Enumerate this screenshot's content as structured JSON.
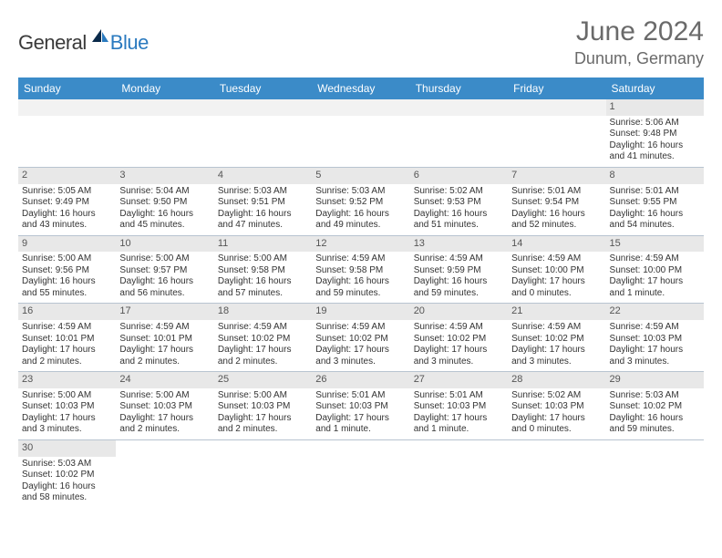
{
  "logo": {
    "text1": "General",
    "text2": "Blue"
  },
  "title": "June 2024",
  "location": "Dunum, Germany",
  "colors": {
    "header_bg": "#3b8bc8",
    "header_text": "#ffffff",
    "daynum_bg": "#e8e8e8",
    "border": "#b8c4d0",
    "title_color": "#6a6a6a"
  },
  "weekdays": [
    "Sunday",
    "Monday",
    "Tuesday",
    "Wednesday",
    "Thursday",
    "Friday",
    "Saturday"
  ],
  "weeks": [
    [
      null,
      null,
      null,
      null,
      null,
      null,
      {
        "n": "1",
        "sr": "Sunrise: 5:06 AM",
        "ss": "Sunset: 9:48 PM",
        "dl1": "Daylight: 16 hours",
        "dl2": "and 41 minutes."
      }
    ],
    [
      {
        "n": "2",
        "sr": "Sunrise: 5:05 AM",
        "ss": "Sunset: 9:49 PM",
        "dl1": "Daylight: 16 hours",
        "dl2": "and 43 minutes."
      },
      {
        "n": "3",
        "sr": "Sunrise: 5:04 AM",
        "ss": "Sunset: 9:50 PM",
        "dl1": "Daylight: 16 hours",
        "dl2": "and 45 minutes."
      },
      {
        "n": "4",
        "sr": "Sunrise: 5:03 AM",
        "ss": "Sunset: 9:51 PM",
        "dl1": "Daylight: 16 hours",
        "dl2": "and 47 minutes."
      },
      {
        "n": "5",
        "sr": "Sunrise: 5:03 AM",
        "ss": "Sunset: 9:52 PM",
        "dl1": "Daylight: 16 hours",
        "dl2": "and 49 minutes."
      },
      {
        "n": "6",
        "sr": "Sunrise: 5:02 AM",
        "ss": "Sunset: 9:53 PM",
        "dl1": "Daylight: 16 hours",
        "dl2": "and 51 minutes."
      },
      {
        "n": "7",
        "sr": "Sunrise: 5:01 AM",
        "ss": "Sunset: 9:54 PM",
        "dl1": "Daylight: 16 hours",
        "dl2": "and 52 minutes."
      },
      {
        "n": "8",
        "sr": "Sunrise: 5:01 AM",
        "ss": "Sunset: 9:55 PM",
        "dl1": "Daylight: 16 hours",
        "dl2": "and 54 minutes."
      }
    ],
    [
      {
        "n": "9",
        "sr": "Sunrise: 5:00 AM",
        "ss": "Sunset: 9:56 PM",
        "dl1": "Daylight: 16 hours",
        "dl2": "and 55 minutes."
      },
      {
        "n": "10",
        "sr": "Sunrise: 5:00 AM",
        "ss": "Sunset: 9:57 PM",
        "dl1": "Daylight: 16 hours",
        "dl2": "and 56 minutes."
      },
      {
        "n": "11",
        "sr": "Sunrise: 5:00 AM",
        "ss": "Sunset: 9:58 PM",
        "dl1": "Daylight: 16 hours",
        "dl2": "and 57 minutes."
      },
      {
        "n": "12",
        "sr": "Sunrise: 4:59 AM",
        "ss": "Sunset: 9:58 PM",
        "dl1": "Daylight: 16 hours",
        "dl2": "and 59 minutes."
      },
      {
        "n": "13",
        "sr": "Sunrise: 4:59 AM",
        "ss": "Sunset: 9:59 PM",
        "dl1": "Daylight: 16 hours",
        "dl2": "and 59 minutes."
      },
      {
        "n": "14",
        "sr": "Sunrise: 4:59 AM",
        "ss": "Sunset: 10:00 PM",
        "dl1": "Daylight: 17 hours",
        "dl2": "and 0 minutes."
      },
      {
        "n": "15",
        "sr": "Sunrise: 4:59 AM",
        "ss": "Sunset: 10:00 PM",
        "dl1": "Daylight: 17 hours",
        "dl2": "and 1 minute."
      }
    ],
    [
      {
        "n": "16",
        "sr": "Sunrise: 4:59 AM",
        "ss": "Sunset: 10:01 PM",
        "dl1": "Daylight: 17 hours",
        "dl2": "and 2 minutes."
      },
      {
        "n": "17",
        "sr": "Sunrise: 4:59 AM",
        "ss": "Sunset: 10:01 PM",
        "dl1": "Daylight: 17 hours",
        "dl2": "and 2 minutes."
      },
      {
        "n": "18",
        "sr": "Sunrise: 4:59 AM",
        "ss": "Sunset: 10:02 PM",
        "dl1": "Daylight: 17 hours",
        "dl2": "and 2 minutes."
      },
      {
        "n": "19",
        "sr": "Sunrise: 4:59 AM",
        "ss": "Sunset: 10:02 PM",
        "dl1": "Daylight: 17 hours",
        "dl2": "and 3 minutes."
      },
      {
        "n": "20",
        "sr": "Sunrise: 4:59 AM",
        "ss": "Sunset: 10:02 PM",
        "dl1": "Daylight: 17 hours",
        "dl2": "and 3 minutes."
      },
      {
        "n": "21",
        "sr": "Sunrise: 4:59 AM",
        "ss": "Sunset: 10:02 PM",
        "dl1": "Daylight: 17 hours",
        "dl2": "and 3 minutes."
      },
      {
        "n": "22",
        "sr": "Sunrise: 4:59 AM",
        "ss": "Sunset: 10:03 PM",
        "dl1": "Daylight: 17 hours",
        "dl2": "and 3 minutes."
      }
    ],
    [
      {
        "n": "23",
        "sr": "Sunrise: 5:00 AM",
        "ss": "Sunset: 10:03 PM",
        "dl1": "Daylight: 17 hours",
        "dl2": "and 3 minutes."
      },
      {
        "n": "24",
        "sr": "Sunrise: 5:00 AM",
        "ss": "Sunset: 10:03 PM",
        "dl1": "Daylight: 17 hours",
        "dl2": "and 2 minutes."
      },
      {
        "n": "25",
        "sr": "Sunrise: 5:00 AM",
        "ss": "Sunset: 10:03 PM",
        "dl1": "Daylight: 17 hours",
        "dl2": "and 2 minutes."
      },
      {
        "n": "26",
        "sr": "Sunrise: 5:01 AM",
        "ss": "Sunset: 10:03 PM",
        "dl1": "Daylight: 17 hours",
        "dl2": "and 1 minute."
      },
      {
        "n": "27",
        "sr": "Sunrise: 5:01 AM",
        "ss": "Sunset: 10:03 PM",
        "dl1": "Daylight: 17 hours",
        "dl2": "and 1 minute."
      },
      {
        "n": "28",
        "sr": "Sunrise: 5:02 AM",
        "ss": "Sunset: 10:03 PM",
        "dl1": "Daylight: 17 hours",
        "dl2": "and 0 minutes."
      },
      {
        "n": "29",
        "sr": "Sunrise: 5:03 AM",
        "ss": "Sunset: 10:02 PM",
        "dl1": "Daylight: 16 hours",
        "dl2": "and 59 minutes."
      }
    ],
    [
      {
        "n": "30",
        "sr": "Sunrise: 5:03 AM",
        "ss": "Sunset: 10:02 PM",
        "dl1": "Daylight: 16 hours",
        "dl2": "and 58 minutes."
      },
      null,
      null,
      null,
      null,
      null,
      null
    ]
  ]
}
